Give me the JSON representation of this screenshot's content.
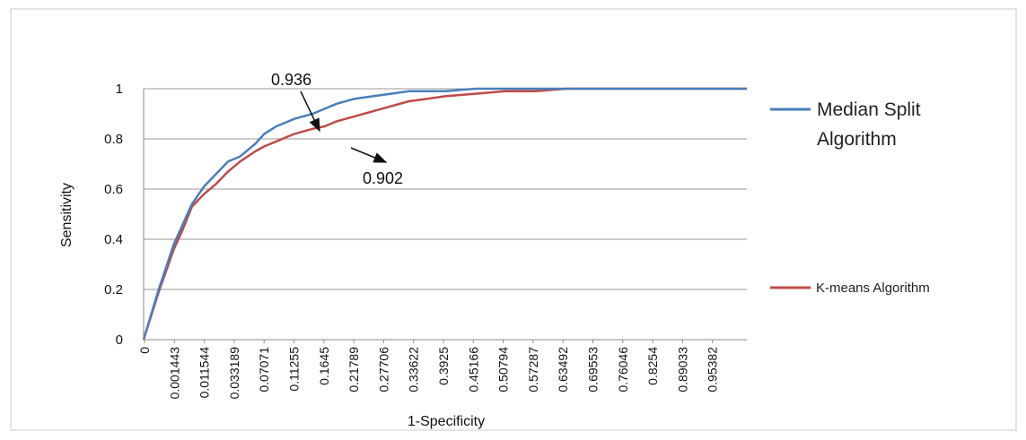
{
  "chart_data": {
    "type": "line",
    "title": "",
    "xlabel": "1-Specificity",
    "ylabel": "Sensitivity",
    "ylim": [
      0,
      1
    ],
    "xlim": [
      0,
      1
    ],
    "grid": true,
    "legend_position": "right",
    "y_ticks": [
      "0",
      "0.2",
      "0.4",
      "0.6",
      "0.8",
      "1"
    ],
    "x_tick_labels": [
      "0",
      "0.001443",
      "0.011544",
      "0.033189",
      "0.07071",
      "0.11255",
      "0.1645",
      "0.21789",
      "0.27706",
      "0.33622",
      "0.3925",
      "0.45166",
      "0.50794",
      "0.57287",
      "0.63492",
      "0.69553",
      "0.76046",
      "0.8254",
      "0.89033",
      "0.95382"
    ],
    "series": [
      {
        "name": "Median Split Algorithm",
        "color": "#4a7ebb",
        "x": [
          0,
          0.025,
          0.05,
          0.065,
          0.08,
          0.1,
          0.12,
          0.14,
          0.16,
          0.185,
          0.2,
          0.22,
          0.25,
          0.28,
          0.3,
          0.32,
          0.35,
          0.38,
          0.41,
          0.44,
          0.47,
          0.5,
          0.55,
          0.6,
          0.65,
          0.7,
          0.75,
          0.8,
          0.85,
          0.9,
          0.95,
          1
        ],
        "y": [
          0,
          0.2,
          0.38,
          0.46,
          0.54,
          0.61,
          0.66,
          0.71,
          0.73,
          0.78,
          0.82,
          0.85,
          0.88,
          0.9,
          0.92,
          0.94,
          0.96,
          0.97,
          0.98,
          0.99,
          0.99,
          0.99,
          1,
          1,
          1,
          1,
          1,
          1,
          1,
          1,
          1,
          1
        ]
      },
      {
        "name": "K-means Algorithm",
        "color": "#be4b48",
        "x": [
          0,
          0.025,
          0.05,
          0.065,
          0.08,
          0.1,
          0.12,
          0.14,
          0.16,
          0.185,
          0.2,
          0.22,
          0.25,
          0.28,
          0.3,
          0.32,
          0.35,
          0.38,
          0.41,
          0.44,
          0.47,
          0.5,
          0.55,
          0.6,
          0.65,
          0.7,
          0.75,
          0.8,
          0.85,
          0.9,
          0.95,
          1
        ],
        "y": [
          0,
          0.19,
          0.36,
          0.44,
          0.53,
          0.58,
          0.62,
          0.67,
          0.71,
          0.75,
          0.77,
          0.79,
          0.82,
          0.84,
          0.85,
          0.87,
          0.89,
          0.91,
          0.93,
          0.95,
          0.96,
          0.97,
          0.98,
          0.99,
          0.99,
          1,
          1,
          1,
          1,
          1,
          1,
          1
        ]
      }
    ],
    "annotations": [
      {
        "text": "0.936",
        "series": "Median Split Algorithm"
      },
      {
        "text": "0.902",
        "series": "K-means Algorithm"
      }
    ]
  }
}
